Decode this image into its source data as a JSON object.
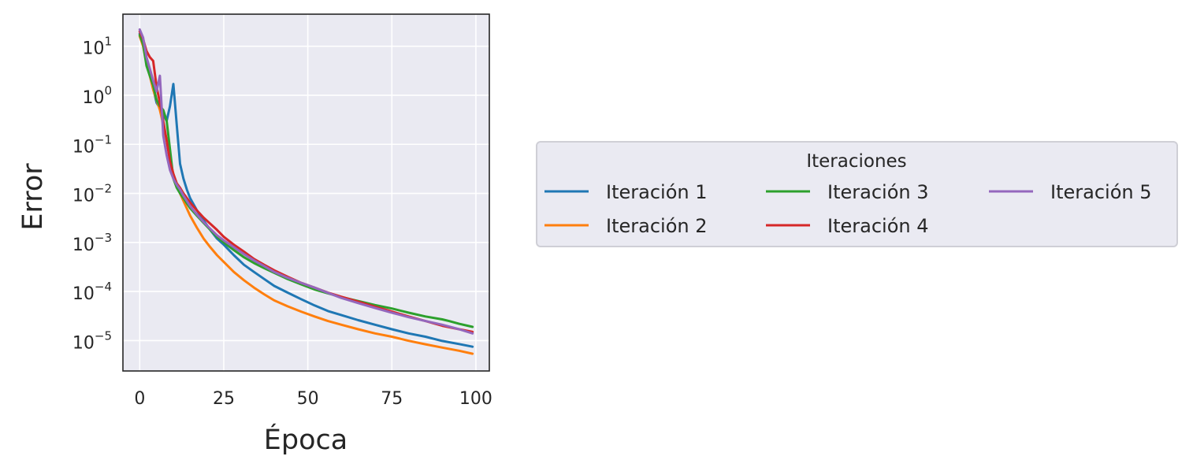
{
  "chart_data": {
    "type": "line",
    "xlabel": "Época",
    "ylabel": "Error",
    "xlim": [
      -5,
      104
    ],
    "ylim": [
      2.4e-06,
      45
    ],
    "yscale": "log",
    "grid": true,
    "xticks": [
      0,
      25,
      50,
      75,
      100
    ],
    "xtick_labels": [
      "0",
      "25",
      "50",
      "75",
      "100"
    ],
    "yticks": [
      1e-05,
      0.0001,
      0.001,
      0.01,
      0.1,
      1,
      10
    ],
    "ytick_labels": [
      {
        "base": "10",
        "exp": "−5"
      },
      {
        "base": "10",
        "exp": "−4"
      },
      {
        "base": "10",
        "exp": "−3"
      },
      {
        "base": "10",
        "exp": "−2"
      },
      {
        "base": "10",
        "exp": "−1"
      },
      {
        "base": "10",
        "exp": "0"
      },
      {
        "base": "10",
        "exp": "1"
      }
    ],
    "legend": {
      "title": "Iteraciones",
      "placement": "outside-right",
      "columns": 3
    },
    "series": [
      {
        "name": "Iteración 1",
        "color": "#1f77b4",
        "x": [
          0,
          1,
          2,
          3,
          4,
          5,
          6,
          7,
          8,
          9,
          10,
          11,
          12,
          13,
          14,
          15,
          17,
          19,
          21,
          23,
          25,
          28,
          31,
          34,
          37,
          40,
          44,
          48,
          52,
          56,
          60,
          65,
          70,
          75,
          80,
          85,
          90,
          95,
          99
        ],
        "y": [
          18,
          12,
          5,
          3,
          1.4,
          0.7,
          0.55,
          0.4,
          0.3,
          0.6,
          1.7,
          0.25,
          0.04,
          0.02,
          0.012,
          0.008,
          0.0045,
          0.0028,
          0.0018,
          0.0012,
          0.0009,
          0.00055,
          0.00035,
          0.00025,
          0.00018,
          0.00013,
          9.5e-05,
          7e-05,
          5.2e-05,
          4e-05,
          3.3e-05,
          2.6e-05,
          2.1e-05,
          1.7e-05,
          1.4e-05,
          1.2e-05,
          9.8e-06,
          8.5e-06,
          7.5e-06
        ]
      },
      {
        "name": "Iteración 2",
        "color": "#ff7f0e",
        "x": [
          0,
          1,
          2,
          3,
          4,
          5,
          6,
          7,
          8,
          9,
          10,
          11,
          12,
          13,
          15,
          17,
          19,
          21,
          23,
          25,
          28,
          31,
          34,
          37,
          40,
          44,
          48,
          52,
          56,
          60,
          65,
          70,
          75,
          80,
          85,
          90,
          95,
          99
        ],
        "y": [
          16,
          10,
          4.5,
          2.5,
          1.3,
          0.8,
          0.5,
          0.25,
          0.12,
          0.05,
          0.025,
          0.015,
          0.01,
          0.007,
          0.0035,
          0.002,
          0.0012,
          0.0008,
          0.00055,
          0.0004,
          0.00025,
          0.00017,
          0.00012,
          8.8e-05,
          6.6e-05,
          5e-05,
          3.9e-05,
          3.1e-05,
          2.5e-05,
          2.1e-05,
          1.7e-05,
          1.4e-05,
          1.2e-05,
          9.9e-06,
          8.4e-06,
          7.2e-06,
          6.2e-06,
          5.4e-06
        ]
      },
      {
        "name": "Iteración 3",
        "color": "#2ca02c",
        "x": [
          0,
          1,
          2,
          3,
          4,
          5,
          6,
          7,
          8,
          9,
          10,
          11,
          12,
          13,
          15,
          17,
          19,
          21,
          23,
          25,
          28,
          31,
          34,
          37,
          40,
          44,
          48,
          52,
          56,
          60,
          65,
          70,
          75,
          80,
          85,
          90,
          92,
          95,
          99
        ],
        "y": [
          17,
          11,
          4,
          2.5,
          1.6,
          0.8,
          0.6,
          0.5,
          0.3,
          0.08,
          0.02,
          0.013,
          0.01,
          0.008,
          0.005,
          0.0035,
          0.0025,
          0.0018,
          0.0013,
          0.001,
          0.0007,
          0.0005,
          0.00038,
          0.0003,
          0.00024,
          0.00018,
          0.00014,
          0.00011,
          9.2e-05,
          7.7e-05,
          6.4e-05,
          5.3e-05,
          4.5e-05,
          3.7e-05,
          3.1e-05,
          2.7e-05,
          2.5e-05,
          2.2e-05,
          1.9e-05
        ]
      },
      {
        "name": "Iteración 4",
        "color": "#d62728",
        "x": [
          0,
          1,
          2,
          3,
          4,
          5,
          6,
          7,
          8,
          9,
          10,
          11,
          12,
          13,
          15,
          17,
          19,
          21,
          23,
          25,
          28,
          31,
          34,
          37,
          40,
          44,
          48,
          52,
          56,
          60,
          65,
          70,
          75,
          80,
          85,
          90,
          95,
          99
        ],
        "y": [
          20,
          14,
          8,
          6,
          5,
          1.5,
          0.7,
          0.3,
          0.12,
          0.045,
          0.025,
          0.016,
          0.013,
          0.01,
          0.0065,
          0.0045,
          0.0032,
          0.0024,
          0.0018,
          0.0013,
          0.0009,
          0.00065,
          0.00046,
          0.00035,
          0.00027,
          0.0002,
          0.00015,
          0.00012,
          9.5e-05,
          7.8e-05,
          6.2e-05,
          4.9e-05,
          3.9e-05,
          3.1e-05,
          2.5e-05,
          2e-05,
          1.7e-05,
          1.5e-05
        ]
      },
      {
        "name": "Iteración 5",
        "color": "#9467bd",
        "x": [
          0,
          1,
          2,
          3,
          4,
          5,
          6,
          7,
          8,
          9,
          10,
          11,
          12,
          13,
          15,
          17,
          19,
          21,
          23,
          25,
          28,
          31,
          34,
          37,
          40,
          44,
          48,
          52,
          56,
          60,
          65,
          70,
          75,
          80,
          85,
          90,
          95,
          99
        ],
        "y": [
          22,
          15,
          6,
          3.5,
          2,
          1.2,
          2.5,
          0.15,
          0.06,
          0.03,
          0.02,
          0.015,
          0.012,
          0.009,
          0.0055,
          0.0037,
          0.0026,
          0.0019,
          0.0014,
          0.0011,
          0.0008,
          0.00058,
          0.00043,
          0.00033,
          0.00025,
          0.00019,
          0.00015,
          0.00012,
          9.4e-05,
          7.4e-05,
          5.8e-05,
          4.6e-05,
          3.7e-05,
          3e-05,
          2.5e-05,
          2.1e-05,
          1.7e-05,
          1.4e-05
        ]
      }
    ]
  }
}
